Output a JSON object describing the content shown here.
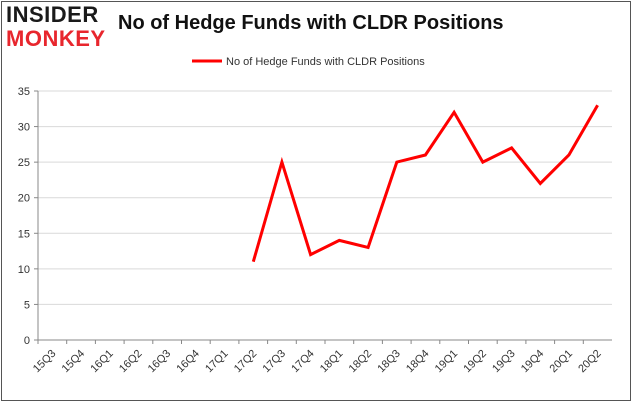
{
  "logo": {
    "top": "INSIDER",
    "bottom": "MONKEY"
  },
  "chart_data": {
    "type": "line",
    "title": "No of Hedge Funds with CLDR Positions",
    "legend": {
      "label": "No of Hedge Funds with CLDR Positions",
      "placement": "top-center"
    },
    "categories": [
      "15Q3",
      "15Q4",
      "16Q1",
      "16Q2",
      "16Q3",
      "16Q4",
      "17Q1",
      "17Q2",
      "17Q3",
      "17Q4",
      "18Q1",
      "18Q2",
      "18Q3",
      "18Q4",
      "19Q1",
      "19Q2",
      "19Q3",
      "19Q4",
      "20Q1",
      "20Q2"
    ],
    "series": [
      {
        "name": "No of Hedge Funds with CLDR Positions",
        "color": "#ff0000",
        "values": [
          null,
          null,
          null,
          null,
          null,
          null,
          null,
          11,
          25,
          12,
          14,
          13,
          25,
          26,
          32,
          25,
          27,
          22,
          26,
          33
        ]
      }
    ],
    "yticks": [
      "0",
      "5",
      "10",
      "15",
      "20",
      "25",
      "30",
      "35"
    ],
    "ylim": [
      0,
      35
    ],
    "grid": true
  }
}
